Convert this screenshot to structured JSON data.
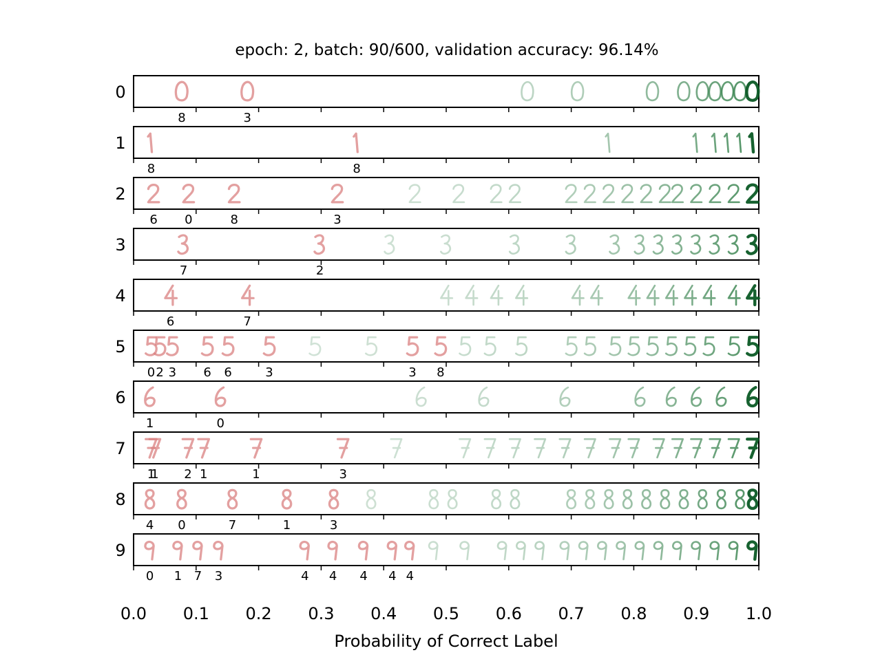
{
  "chart_data": {
    "type": "scatter",
    "title": "epoch: 2, batch: 90/600, validation accuracy: 96.14%",
    "xlabel": "Probability of Correct Label",
    "ylabel": "",
    "xlim": [
      0.0,
      1.0
    ],
    "x_tick_labels": [
      "0.0",
      "0.1",
      "0.2",
      "0.3",
      "0.4",
      "0.5",
      "0.6",
      "0.7",
      "0.8",
      "0.9",
      "1.0"
    ],
    "colors": {
      "incorrect": "#d98080",
      "correct": "#2e7d46",
      "correct_strong": "#0b5a25",
      "axis": "#000000"
    },
    "rows": [
      {
        "label": "0",
        "misclassified": [
          {
            "x": 0.077,
            "pred": "8"
          },
          {
            "x": 0.182,
            "pred": "3"
          }
        ],
        "correct_x": [
          0.63,
          0.71,
          0.83,
          0.88,
          0.91,
          0.93,
          0.95,
          0.97,
          0.99
        ]
      },
      {
        "label": "1",
        "misclassified": [
          {
            "x": 0.028,
            "pred": "8"
          },
          {
            "x": 0.357,
            "pred": "8"
          }
        ],
        "correct_x": [
          0.76,
          0.9,
          0.93,
          0.95,
          0.97,
          0.99
        ]
      },
      {
        "label": "2",
        "misclassified": [
          {
            "x": 0.032,
            "pred": "6"
          },
          {
            "x": 0.088,
            "pred": "0"
          },
          {
            "x": 0.161,
            "pred": "8"
          },
          {
            "x": 0.326,
            "pred": "3"
          }
        ],
        "correct_x": [
          0.45,
          0.52,
          0.58,
          0.61,
          0.7,
          0.73,
          0.76,
          0.79,
          0.82,
          0.85,
          0.87,
          0.9,
          0.93,
          0.96,
          0.99
        ]
      },
      {
        "label": "3",
        "misclassified": [
          {
            "x": 0.08,
            "pred": "7"
          },
          {
            "x": 0.298,
            "pred": "2"
          }
        ],
        "correct_x": [
          0.41,
          0.5,
          0.61,
          0.7,
          0.77,
          0.81,
          0.84,
          0.87,
          0.9,
          0.93,
          0.96,
          0.99
        ]
      },
      {
        "label": "4",
        "misclassified": [
          {
            "x": 0.059,
            "pred": "6"
          },
          {
            "x": 0.182,
            "pred": "7"
          }
        ],
        "correct_x": [
          0.5,
          0.54,
          0.58,
          0.62,
          0.71,
          0.74,
          0.8,
          0.83,
          0.86,
          0.89,
          0.92,
          0.96,
          0.99
        ]
      },
      {
        "label": "5",
        "misclassified": [
          {
            "x": 0.028,
            "pred": "0"
          },
          {
            "x": 0.042,
            "pred": "2"
          },
          {
            "x": 0.062,
            "pred": "3"
          },
          {
            "x": 0.118,
            "pred": "6"
          },
          {
            "x": 0.151,
            "pred": "6"
          },
          {
            "x": 0.217,
            "pred": "3"
          },
          {
            "x": 0.446,
            "pred": "3"
          },
          {
            "x": 0.491,
            "pred": "8"
          }
        ],
        "correct_x": [
          0.29,
          0.38,
          0.53,
          0.57,
          0.62,
          0.7,
          0.73,
          0.77,
          0.8,
          0.83,
          0.86,
          0.89,
          0.92,
          0.96,
          0.99
        ]
      },
      {
        "label": "6",
        "misclassified": [
          {
            "x": 0.026,
            "pred": "1"
          },
          {
            "x": 0.139,
            "pred": "0"
          }
        ],
        "correct_x": [
          0.46,
          0.56,
          0.69,
          0.81,
          0.86,
          0.9,
          0.94,
          0.99
        ]
      },
      {
        "label": "7",
        "misclassified": [
          {
            "x": 0.028,
            "pred": "1"
          },
          {
            "x": 0.034,
            "pred": "1"
          },
          {
            "x": 0.087,
            "pred": "2"
          },
          {
            "x": 0.112,
            "pred": "1"
          },
          {
            "x": 0.196,
            "pred": "1"
          },
          {
            "x": 0.335,
            "pred": "3"
          }
        ],
        "correct_x": [
          0.42,
          0.53,
          0.57,
          0.61,
          0.65,
          0.69,
          0.73,
          0.77,
          0.8,
          0.84,
          0.87,
          0.9,
          0.93,
          0.96,
          0.99
        ]
      },
      {
        "label": "8",
        "misclassified": [
          {
            "x": 0.026,
            "pred": "4"
          },
          {
            "x": 0.077,
            "pred": "0"
          },
          {
            "x": 0.158,
            "pred": "7"
          },
          {
            "x": 0.245,
            "pred": "1"
          },
          {
            "x": 0.32,
            "pred": "3"
          }
        ],
        "correct_x": [
          0.38,
          0.48,
          0.51,
          0.58,
          0.61,
          0.7,
          0.73,
          0.76,
          0.79,
          0.82,
          0.85,
          0.88,
          0.91,
          0.94,
          0.97,
          0.99
        ]
      },
      {
        "label": "9",
        "misclassified": [
          {
            "x": 0.026,
            "pred": "0"
          },
          {
            "x": 0.071,
            "pred": "1"
          },
          {
            "x": 0.103,
            "pred": "7"
          },
          {
            "x": 0.136,
            "pred": "3"
          },
          {
            "x": 0.274,
            "pred": "4"
          },
          {
            "x": 0.319,
            "pred": "4"
          },
          {
            "x": 0.368,
            "pred": "4"
          },
          {
            "x": 0.414,
            "pred": "4"
          },
          {
            "x": 0.442,
            "pred": "4"
          }
        ],
        "correct_x": [
          0.48,
          0.53,
          0.59,
          0.62,
          0.65,
          0.69,
          0.72,
          0.75,
          0.78,
          0.81,
          0.84,
          0.87,
          0.9,
          0.93,
          0.96,
          0.99
        ]
      }
    ]
  }
}
